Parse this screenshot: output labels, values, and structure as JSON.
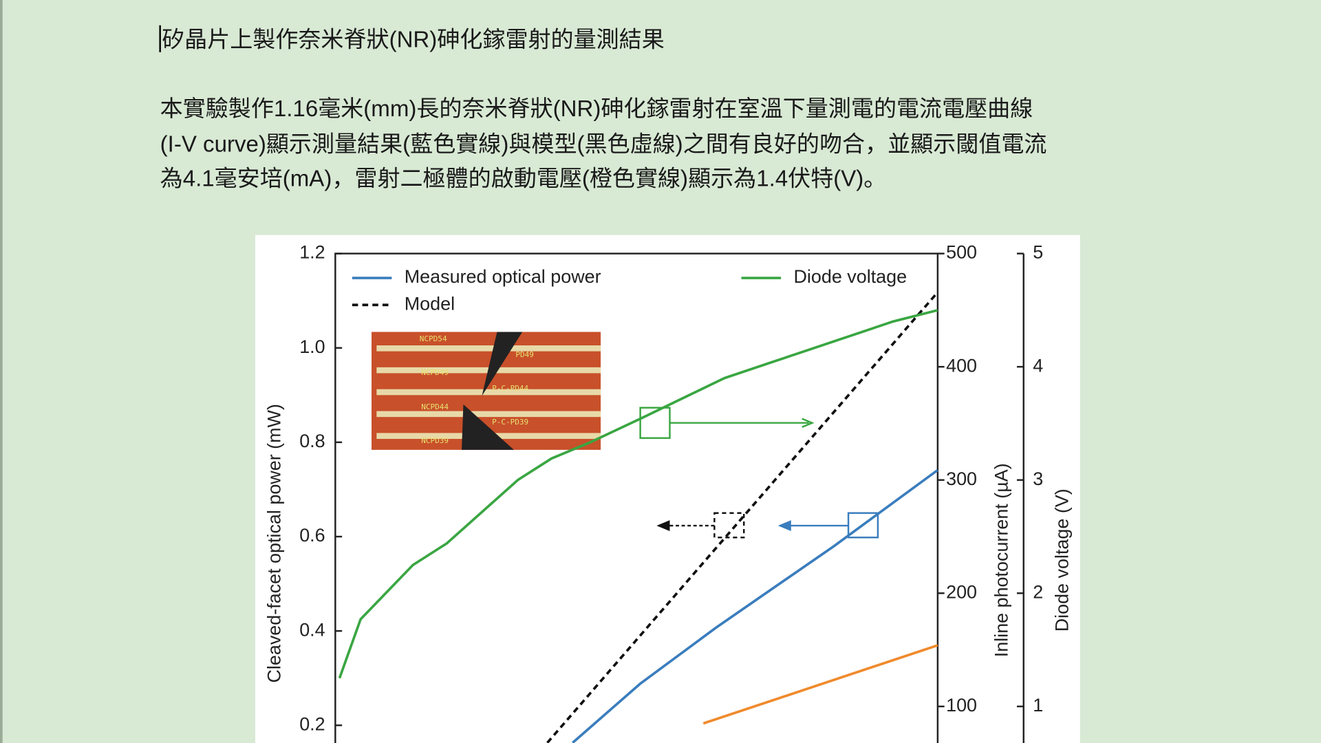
{
  "document": {
    "title": "矽晶片上製作奈米脊狀(NR)砷化鎵雷射的量測結果",
    "paragraph": [
      "本實驗製作1.16毫米(mm)長的奈米脊狀(NR)砷化鎵雷射在室溫下量測電的電流電壓曲線",
      "(I-V curve)顯示測量結果(藍色實線)與模型(黑色虛線)之間有良好的吻合，並顯示閾值電流",
      "為4.1毫安培(mA)，雷射二極體的啟動電壓(橙色實線)顯示為1.4伏特(V)。"
    ]
  },
  "chart_data": {
    "type": "line",
    "ylabel": "Cleaved-facet optical power (mW)",
    "y2label": "Inline photocurrent (µA)",
    "y3label": "Diode voltage (V)",
    "xlim": [
      0,
      10
    ],
    "ylim": [
      0,
      1.2
    ],
    "yticks": [
      0.2,
      0.4,
      0.6,
      0.8,
      {
        "value": 1,
        "label": "1.0"
      },
      1.2
    ],
    "y2lim": [
      0,
      500
    ],
    "y2ticks": [
      100,
      200,
      300,
      400,
      500
    ],
    "y3lim": [
      0,
      5
    ],
    "y3ticks": [
      1,
      2,
      3,
      4,
      5
    ],
    "inset_labels": [
      "NCPD54",
      "PD49",
      "NCPD49",
      "P-C-PD44",
      "NCPD44",
      "P-C-PD39",
      "NCPD39"
    ],
    "series": [
      {
        "name": "Measured optical power",
        "color": "#3a7dbd",
        "dash": false,
        "x": [
          3.94,
          5.06,
          6.32,
          8.28,
          10
        ],
        "values": [
          0.163,
          0.288,
          0.407,
          0.58,
          0.741
        ]
      },
      {
        "name": "Model",
        "color": "#111111",
        "dash": true,
        "x": [
          3.52,
          10
        ],
        "values": [
          0.163,
          1.118
        ]
      },
      {
        "name": "Diode voltage",
        "color": "#3aa642",
        "dash": false,
        "axis": "y3",
        "x": [
          0.07,
          0.42,
          1.29,
          1.85,
          3.03,
          3.59,
          4.22,
          5.06,
          6.46,
          7.3,
          8.42,
          9.26,
          10
        ],
        "values": [
          1.25,
          1.77,
          2.25,
          2.44,
          3.0,
          3.19,
          3.33,
          3.54,
          3.9,
          4.05,
          4.25,
          4.4,
          4.5
        ]
      },
      {
        "color": "#f08a2c",
        "dash": false,
        "axis": "y2",
        "x": [
          6.11,
          10
        ],
        "values": [
          85,
          154
        ]
      }
    ]
  }
}
